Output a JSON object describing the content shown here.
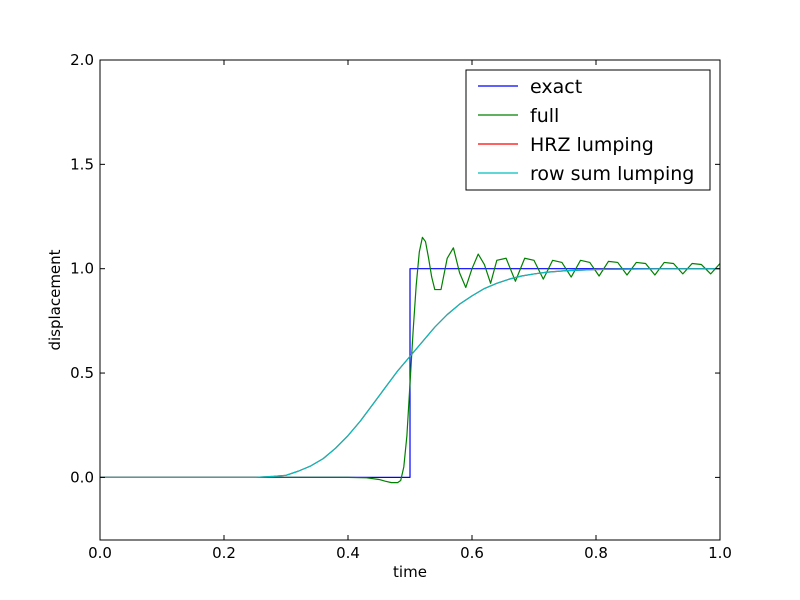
{
  "chart_data": {
    "type": "line",
    "title": "",
    "xlabel": "time",
    "ylabel": "displacement",
    "xlim": [
      0.0,
      1.0
    ],
    "ylim": [
      -0.3,
      2.0
    ],
    "xticks": [
      "0.0",
      "0.2",
      "0.4",
      "0.6",
      "0.8",
      "1.0"
    ],
    "xtick_values": [
      0.0,
      0.2,
      0.4,
      0.6,
      0.8,
      1.0
    ],
    "yticks": [
      "0.0",
      "0.5",
      "1.0",
      "1.5",
      "2.0"
    ],
    "ytick_values": [
      0.0,
      0.5,
      1.0,
      1.5,
      2.0
    ],
    "grid": false,
    "legend_position": "top-right",
    "series": [
      {
        "name": "exact",
        "color": "#0000ff",
        "x": [
          0.0,
          0.5,
          0.5,
          1.0
        ],
        "y": [
          0.0,
          0.0,
          1.0,
          1.0
        ]
      },
      {
        "name": "full",
        "color": "#008000",
        "x": [
          0.0,
          0.3,
          0.4,
          0.43,
          0.45,
          0.46,
          0.47,
          0.48,
          0.485,
          0.49,
          0.495,
          0.5,
          0.505,
          0.51,
          0.515,
          0.52,
          0.525,
          0.53,
          0.535,
          0.54,
          0.55,
          0.56,
          0.57,
          0.58,
          0.59,
          0.6,
          0.61,
          0.62,
          0.63,
          0.64,
          0.655,
          0.67,
          0.685,
          0.7,
          0.715,
          0.73,
          0.745,
          0.76,
          0.775,
          0.79,
          0.805,
          0.82,
          0.835,
          0.85,
          0.865,
          0.88,
          0.895,
          0.91,
          0.925,
          0.94,
          0.955,
          0.97,
          0.985,
          1.0
        ],
        "y": [
          0.0,
          0.0,
          0.0,
          -0.002,
          -0.01,
          -0.018,
          -0.025,
          -0.025,
          -0.015,
          0.05,
          0.2,
          0.45,
          0.7,
          0.92,
          1.08,
          1.15,
          1.13,
          1.05,
          0.96,
          0.9,
          0.9,
          1.05,
          1.1,
          0.98,
          0.91,
          1.0,
          1.07,
          1.02,
          0.93,
          1.04,
          1.05,
          0.94,
          1.05,
          1.04,
          0.95,
          1.04,
          1.03,
          0.96,
          1.04,
          1.03,
          0.965,
          1.035,
          1.03,
          0.97,
          1.03,
          1.025,
          0.97,
          1.03,
          1.025,
          0.975,
          1.025,
          1.02,
          0.975,
          1.025
        ]
      },
      {
        "name": "HRZ lumping",
        "color": "#ff0000",
        "x": [
          0.0,
          0.25,
          0.28,
          0.3,
          0.32,
          0.34,
          0.36,
          0.38,
          0.4,
          0.42,
          0.44,
          0.46,
          0.48,
          0.5,
          0.52,
          0.54,
          0.56,
          0.58,
          0.6,
          0.62,
          0.64,
          0.66,
          0.68,
          0.7,
          0.72,
          0.75,
          0.8,
          0.85,
          0.9,
          1.0
        ],
        "y": [
          0.0,
          0.0,
          0.005,
          0.01,
          0.03,
          0.055,
          0.09,
          0.14,
          0.2,
          0.27,
          0.35,
          0.43,
          0.51,
          0.58,
          0.65,
          0.72,
          0.78,
          0.83,
          0.87,
          0.905,
          0.93,
          0.95,
          0.965,
          0.975,
          0.983,
          0.99,
          0.996,
          0.998,
          0.999,
          1.0
        ]
      },
      {
        "name": "row sum lumping",
        "color": "#00bfbf",
        "x": [
          0.0,
          0.25,
          0.28,
          0.3,
          0.32,
          0.34,
          0.36,
          0.38,
          0.4,
          0.42,
          0.44,
          0.46,
          0.48,
          0.5,
          0.52,
          0.54,
          0.56,
          0.58,
          0.6,
          0.62,
          0.64,
          0.66,
          0.68,
          0.7,
          0.72,
          0.75,
          0.8,
          0.85,
          0.9,
          1.0
        ],
        "y": [
          0.0,
          0.0,
          0.005,
          0.01,
          0.03,
          0.055,
          0.09,
          0.14,
          0.2,
          0.27,
          0.35,
          0.43,
          0.51,
          0.58,
          0.65,
          0.72,
          0.78,
          0.83,
          0.87,
          0.905,
          0.93,
          0.95,
          0.965,
          0.975,
          0.983,
          0.99,
          0.996,
          0.998,
          0.999,
          1.0
        ]
      }
    ]
  }
}
